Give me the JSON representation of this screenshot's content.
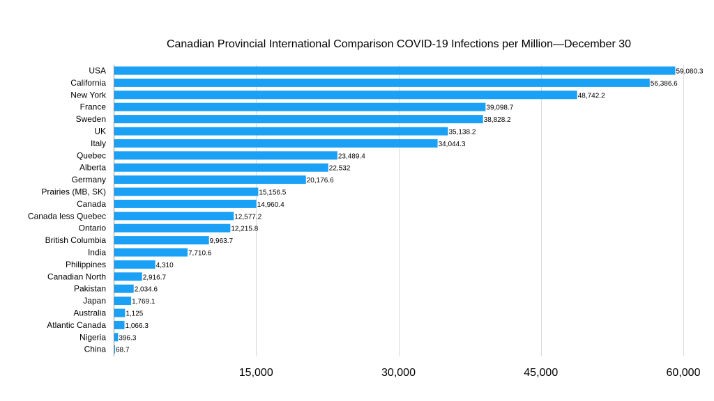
{
  "chart_data": {
    "type": "bar",
    "orientation": "horizontal",
    "title": "Canadian Provincial International Comparison COVID-19 Infections per Million—December 30",
    "xlabel": "",
    "ylabel": "",
    "xlim": [
      0,
      60000
    ],
    "x_ticks": [
      15000,
      30000,
      45000,
      60000
    ],
    "x_tick_labels": [
      "15,000",
      "30,000",
      "45,000",
      "60,000"
    ],
    "grid": true,
    "legend": "none",
    "bar_color": "#1aa0f5",
    "categories": [
      "USA",
      "California",
      "New York",
      "France",
      "Sweden",
      "UK",
      "Italy",
      "Quebec",
      "Alberta",
      "Germany",
      "Prairies (MB, SK)",
      "Canada",
      "Canada less Quebec",
      "Ontario",
      "British Columbia",
      "India",
      "Philippines",
      "Canadian North",
      "Pakistan",
      "Japan",
      "Australia",
      "Atlantic Canada",
      "Nigeria",
      "China"
    ],
    "values": [
      59080.3,
      56386.6,
      48742.2,
      39098.7,
      38828.2,
      35138.2,
      34044.3,
      23489.4,
      22532,
      20176.6,
      15156.5,
      14960.4,
      12577.2,
      12215.8,
      9963.7,
      7710.6,
      4310,
      2916.7,
      2034.6,
      1769.1,
      1125,
      1066.3,
      396.3,
      68.7
    ],
    "value_labels": [
      "59,080.3",
      "56,386.6",
      "48,742.2",
      "39,098.7",
      "38,828.2",
      "35,138.2",
      "34,044.3",
      "23,489.4",
      "22,532",
      "20,176.6",
      "15,156.5",
      "14,960.4",
      "12,577.2",
      "12,215.8",
      "9,963.7",
      "7,710.6",
      "4,310",
      "2,916.7",
      "2,034.6",
      "1,769.1",
      "1,125",
      "1,066.3",
      "396.3",
      "68.7"
    ]
  }
}
